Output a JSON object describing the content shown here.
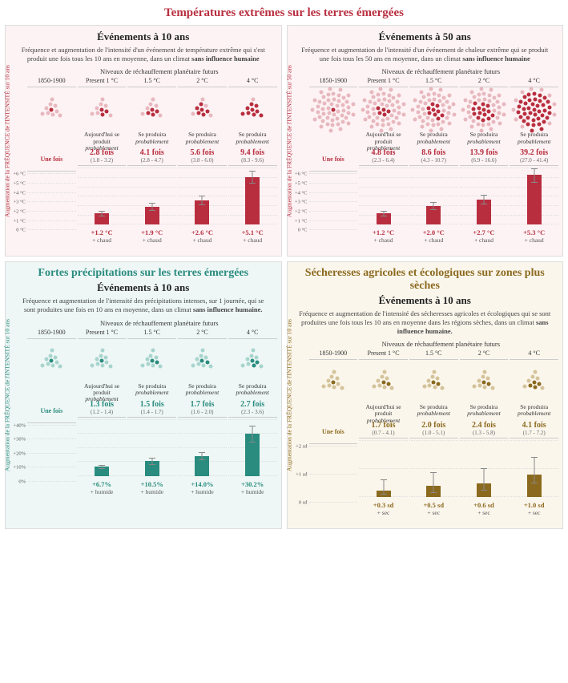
{
  "main_title": "Températures extrêmes sur les terres émergées",
  "main_title_color": "#b82e3f",
  "levels_label": "Niveaux de réchauffement planétaire futurs",
  "column_headers": [
    "1850-1900",
    "Present 1 °C",
    "1.5 °C",
    "2 °C",
    "4 °C"
  ],
  "occurs_base": "Une fois",
  "occurs_now": "Aujourd'hui se produit",
  "occurs_future": "Se produira",
  "occurs_prob": "probablement",
  "panels": {
    "temp10": {
      "bg": "#fdf3f4",
      "accent": "#b82e3f",
      "light_accent": "#e8b8bf",
      "sub": "Événements à 10 ans",
      "desc_a": "Fréquence et augmentation de l'intensité d'un événement de température extrême qui s'est produit une fois tous les 10 ans en moyenne, dans un climat ",
      "desc_b": "sans influence humaine",
      "y_label": "Augmentation de la FRÉQUENCE de l'INTENSITÉ sur 10 ans",
      "freq": [
        "2.8 fois",
        "4.1 fois",
        "5.6 fois",
        "9.4 fois"
      ],
      "ci": [
        "(1.8 - 3.2)",
        "(2.8 - 4.7)",
        "(3.8 - 6.0)",
        "(8.3 - 9.6)"
      ],
      "n_light": 10,
      "n_dark_base": 1,
      "n_dark": [
        3,
        4,
        6,
        9
      ],
      "bar_max": 6,
      "bar_ticks": [
        "0 °C",
        "+1 °C",
        "+2 °C",
        "+3 °C",
        "+4 °C",
        "+5 °C",
        "+6 °C"
      ],
      "bars": [
        1.2,
        1.9,
        2.6,
        5.1
      ],
      "bar_err": [
        [
          0.9,
          1.5
        ],
        [
          1.5,
          2.3
        ],
        [
          2.1,
          3.1
        ],
        [
          4.4,
          5.8
        ]
      ],
      "val": [
        "+1.2 °C",
        "+1.9 °C",
        "+2.6 °C",
        "+5.1 °C"
      ],
      "val_sub": "+ chaud"
    },
    "temp50": {
      "bg": "#fdf3f4",
      "accent": "#b82e3f",
      "light_accent": "#e8b8bf",
      "sub": "Événements à 50 ans",
      "desc_a": "Fréquence et augmentation de l'intensité d'un événement de chaleur extrême qui se produit une fois tous les 50 ans en moyenne, dans un climat ",
      "desc_b": "sans influence humaine",
      "y_label": "Augmentation de la FRÉQUENCE de l'INTENSITÉ sur 50 ans",
      "freq": [
        "4.8 fois",
        "8.6 fois",
        "13.9 fois",
        "39.2 fois"
      ],
      "ci": [
        "(2.3 - 6.4)",
        "(4.3 - 10.7)",
        "(6.9 - 16.6)",
        "(27.0 - 41.4)"
      ],
      "n_light": 50,
      "n_dark_base": 1,
      "n_dark": [
        5,
        9,
        14,
        39
      ],
      "bar_max": 6,
      "bar_ticks": [
        "0 °C",
        "+1 °C",
        "+2 °C",
        "+3 °C",
        "+4 °C",
        "+5 °C",
        "+6 °C"
      ],
      "bars": [
        1.2,
        2.0,
        2.7,
        5.3
      ],
      "bar_err": [
        [
          0.9,
          1.5
        ],
        [
          1.6,
          2.4
        ],
        [
          2.2,
          3.2
        ],
        [
          4.5,
          6.0
        ]
      ],
      "val": [
        "+1.2 °C",
        "+2.0 °C",
        "+2.7 °C",
        "+5.3 °C"
      ],
      "val_sub": "+ chaud"
    },
    "precip": {
      "bg": "#eef7f5",
      "accent": "#2a8b7f",
      "light_accent": "#a8d4ce",
      "title": "Fortes précipitations sur les terres émergées",
      "sub": "Événements à 10 ans",
      "desc_a": "Fréquence et augmentation de l'intensité des précipitations intenses, sur 1 journée, qui se sont produites une fois en 10 ans en moyenne, dans un climat ",
      "desc_b": "sans influence humaine.",
      "y_label": "Augmentation de la FRÉQUENCE de l'INTENSITÉ sur 10 ans",
      "freq": [
        "1.3 fois",
        "1.5 fois",
        "1.7 fois",
        "2.7 fois"
      ],
      "ci": [
        "(1.2 - 1.4)",
        "(1.4 - 1.7)",
        "(1.6 - 2.0)",
        "(2.3 - 3.6)"
      ],
      "n_light": 10,
      "n_dark_base": 1,
      "n_dark": [
        1,
        2,
        2,
        3
      ],
      "bar_max": 40,
      "bar_ticks": [
        "0%",
        "+10%",
        "+20%",
        "+30%",
        "+40%"
      ],
      "bars": [
        6.7,
        10.5,
        14.0,
        30.2
      ],
      "bar_err": [
        [
          5,
          8
        ],
        [
          8,
          13
        ],
        [
          11,
          17
        ],
        [
          24,
          36
        ]
      ],
      "val": [
        "+6.7%",
        "+10.5%",
        "+14.0%",
        "+30.2%"
      ],
      "val_sub": "+ humide"
    },
    "drought": {
      "bg": "#fbf6ec",
      "accent": "#8b6a1f",
      "light_accent": "#d4c39a",
      "title": "Sécheresses agricoles et écologiques sur zones plus sèches",
      "sub": "Événements à 10 ans",
      "desc_a": "Fréquence et augmentation de l'intensité des sécheresses agricoles et écologiques qui se sont produites une fois tous les 10 ans en moyenne dans les régions sèches, dans un climat ",
      "desc_b": "sans influence humaine.",
      "y_label": "Augmentation de la FRÉQUENCE de l'INTENSITÉ sur 10 ans",
      "freq": [
        "1.7 fois",
        "2.0 fois",
        "2.4 fois",
        "4.1 fois"
      ],
      "ci": [
        "(0.7 - 4.1)",
        "(1.0 - 5.1)",
        "(1.3 - 5.8)",
        "(1.7 - 7.2)"
      ],
      "n_light": 10,
      "n_dark_base": 1,
      "n_dark": [
        2,
        2,
        2,
        4
      ],
      "bar_max": 2.5,
      "bar_ticks": [
        "0 sd",
        "+1 sd",
        "+2 sd"
      ],
      "bars": [
        0.3,
        0.5,
        0.6,
        1.0
      ],
      "bar_err": [
        [
          0.1,
          0.8
        ],
        [
          0.2,
          1.1
        ],
        [
          0.3,
          1.3
        ],
        [
          0.6,
          1.8
        ]
      ],
      "val": [
        "+0.3 sd",
        "+0.5 sd",
        "+0.6 sd",
        "+1.0 sd"
      ],
      "val_sub": "+ sec"
    }
  }
}
